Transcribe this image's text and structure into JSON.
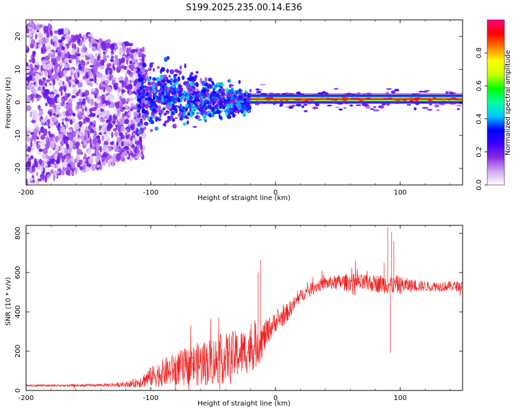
{
  "title": "S199.2025.235.00.14.E36",
  "chart_data": [
    {
      "type": "heatmap",
      "name": "spectrogram",
      "xlabel": "Height of straight line (km)",
      "ylabel": "Frequency (Hz)",
      "xlim": [
        -200,
        150
      ],
      "ylim": [
        -25,
        25
      ],
      "xticks": [
        -200,
        -100,
        0,
        100
      ],
      "yticks": [
        -20,
        -10,
        0,
        10,
        20
      ],
      "colorbar": {
        "label": "Normalized spectral amplitude",
        "range": [
          0,
          1
        ],
        "ticks": [
          0.0,
          0.2,
          0.4,
          0.6,
          0.8
        ],
        "tick_labels": [
          "0.0",
          "0.2",
          "0.4",
          "0.6",
          "0.8"
        ],
        "colors": [
          "#ffffff",
          "#cfa8f5",
          "#8a2be2",
          "#3b00ff",
          "#0000ff",
          "#00c8ff",
          "#00ffa0",
          "#00ff00",
          "#c8ff00",
          "#ffff00",
          "#ff8000",
          "#ff0000",
          "#ff0080"
        ]
      },
      "features": {
        "noise_region_x": [
          -200,
          -110
        ],
        "noise_amplitude": 0.2,
        "transition_region_x": [
          -110,
          -20
        ],
        "transition_amplitude": 0.35,
        "carrier_line_x": [
          -20,
          150
        ],
        "carrier_freq_hz": 1,
        "carrier_amplitude": 0.9
      }
    },
    {
      "type": "line",
      "name": "snr",
      "xlabel": "Height of straight line (km)",
      "ylabel": "SNR (10 * v/v)",
      "xlim": [
        -200,
        150
      ],
      "ylim": [
        0,
        840
      ],
      "xticks": [
        -200,
        -100,
        0,
        100
      ],
      "yticks": [
        0,
        200,
        400,
        600,
        800
      ],
      "color": "#ee2222",
      "x": [
        -200,
        -180,
        -160,
        -140,
        -120,
        -110,
        -100,
        -90,
        -80,
        -70,
        -60,
        -50,
        -40,
        -30,
        -20,
        -15,
        -10,
        -5,
        0,
        5,
        10,
        15,
        20,
        30,
        40,
        50,
        60,
        70,
        80,
        90,
        95,
        100,
        110,
        120,
        130,
        140,
        150
      ],
      "y": [
        25,
        25,
        25,
        27,
        30,
        40,
        70,
        90,
        110,
        125,
        135,
        150,
        165,
        185,
        210,
        230,
        260,
        310,
        350,
        370,
        400,
        440,
        480,
        525,
        545,
        550,
        550,
        545,
        545,
        540,
        540,
        535,
        535,
        530,
        530,
        530,
        530
      ],
      "noise": [
        5,
        5,
        5,
        6,
        10,
        20,
        40,
        55,
        65,
        75,
        90,
        95,
        100,
        95,
        90,
        90,
        70,
        50,
        40,
        40,
        35,
        30,
        25,
        25,
        25,
        30,
        35,
        35,
        35,
        40,
        40,
        35,
        25,
        20,
        20,
        20,
        20
      ],
      "spikes": [
        {
          "x": -12,
          "y": 665
        },
        {
          "x": -14,
          "y": 600
        },
        {
          "x": 90,
          "y": 830
        },
        {
          "x": 92,
          "y": 190
        },
        {
          "x": 93,
          "y": 805
        },
        {
          "x": 95,
          "y": 760
        },
        {
          "x": 87,
          "y": 650
        }
      ]
    }
  ]
}
